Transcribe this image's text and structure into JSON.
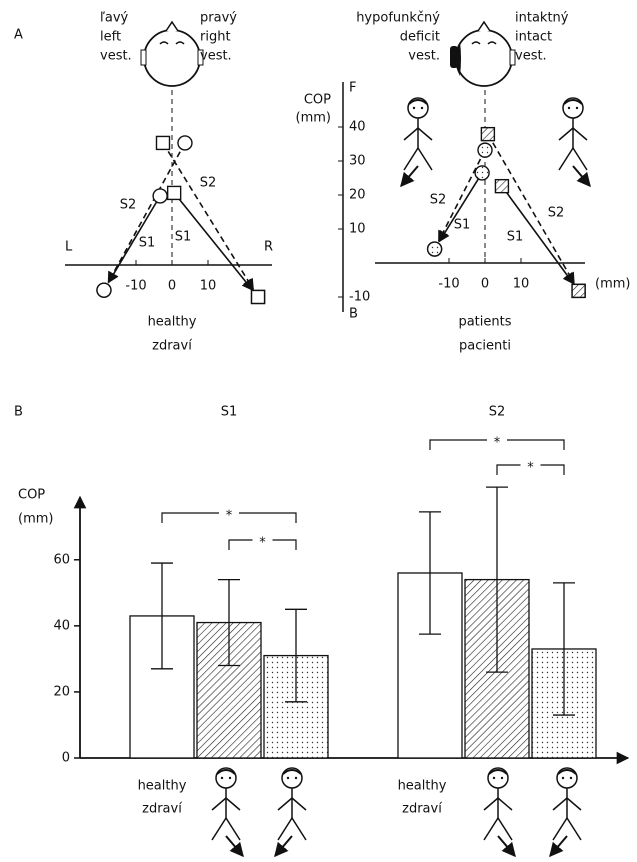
{
  "panels": [
    "A",
    "B"
  ],
  "chart_data": [
    {
      "type": "vector",
      "labels_left": [
        "ľavý",
        "left",
        "vest."
      ],
      "labels_right": [
        "pravý",
        "right",
        "vest."
      ],
      "side_labels": [
        "L",
        "R"
      ],
      "xticks": [
        -10,
        0,
        10
      ],
      "caption": [
        "healthy",
        "zdraví"
      ],
      "series": [
        {
          "name": "S2",
          "marker": "circle",
          "fill": "white",
          "dashed": true,
          "from": [
            3.6,
            35.9
          ],
          "to": [
            -18.9,
            -7.4
          ]
        },
        {
          "name": "S1",
          "marker": "circle",
          "fill": "white",
          "dashed": false,
          "from": [
            -3.3,
            20.3
          ],
          "to": [
            -18.9,
            -7.4
          ]
        },
        {
          "name": "S1",
          "marker": "square",
          "fill": "white",
          "dashed": false,
          "from": [
            0.6,
            21.2
          ],
          "to": [
            23.9,
            -9.4
          ]
        },
        {
          "name": "S2",
          "marker": "square",
          "fill": "white",
          "dashed": true,
          "from": [
            -2.5,
            35.9
          ],
          "to": [
            23.9,
            -9.4
          ]
        }
      ]
    },
    {
      "type": "vector",
      "labels_left": [
        "hypofunkčný",
        "deficit",
        "vest."
      ],
      "labels_right": [
        "intaktný",
        "intact",
        "vest."
      ],
      "y_label": [
        "COP",
        "(mm)"
      ],
      "y_ends": [
        "F",
        "B"
      ],
      "yticks": [
        -10,
        10,
        20,
        30,
        40
      ],
      "xticks": [
        -10,
        0,
        10
      ],
      "x_unit": "(mm)",
      "caption": [
        "patients",
        "pacienti"
      ],
      "series": [
        {
          "name": "S2",
          "marker": "circle",
          "fill": "dots",
          "dashed": true,
          "from": [
            0,
            33.2
          ],
          "to": [
            -14,
            4.1
          ]
        },
        {
          "name": "S1",
          "marker": "circle",
          "fill": "dots",
          "dashed": false,
          "from": [
            -0.8,
            26.5
          ],
          "to": [
            -14,
            4.1
          ]
        },
        {
          "name": "S1",
          "marker": "square",
          "fill": "hatch",
          "dashed": false,
          "from": [
            4.7,
            22.6
          ],
          "to": [
            26,
            -8.2
          ]
        },
        {
          "name": "S2",
          "marker": "square",
          "fill": "hatch",
          "dashed": true,
          "from": [
            0.8,
            37.9
          ],
          "to": [
            26,
            -8.2
          ]
        }
      ]
    },
    {
      "type": "bar",
      "y_label": [
        "COP",
        "(mm)"
      ],
      "ylim": [
        0,
        79
      ],
      "yticks": [
        0,
        20,
        40,
        60
      ],
      "fills": [
        "white",
        "hatch",
        "dots"
      ],
      "healthy_label": [
        "healthy",
        "zdraví"
      ],
      "groups": [
        {
          "name": "S1",
          "values": [
            43,
            41,
            31
          ],
          "errors": [
            16,
            13,
            14
          ],
          "significance": [
            "*",
            "*"
          ]
        },
        {
          "name": "S2",
          "values": [
            56,
            54,
            33
          ],
          "errors": [
            18.5,
            28,
            20
          ],
          "significance": [
            "*",
            "*"
          ]
        }
      ]
    }
  ]
}
